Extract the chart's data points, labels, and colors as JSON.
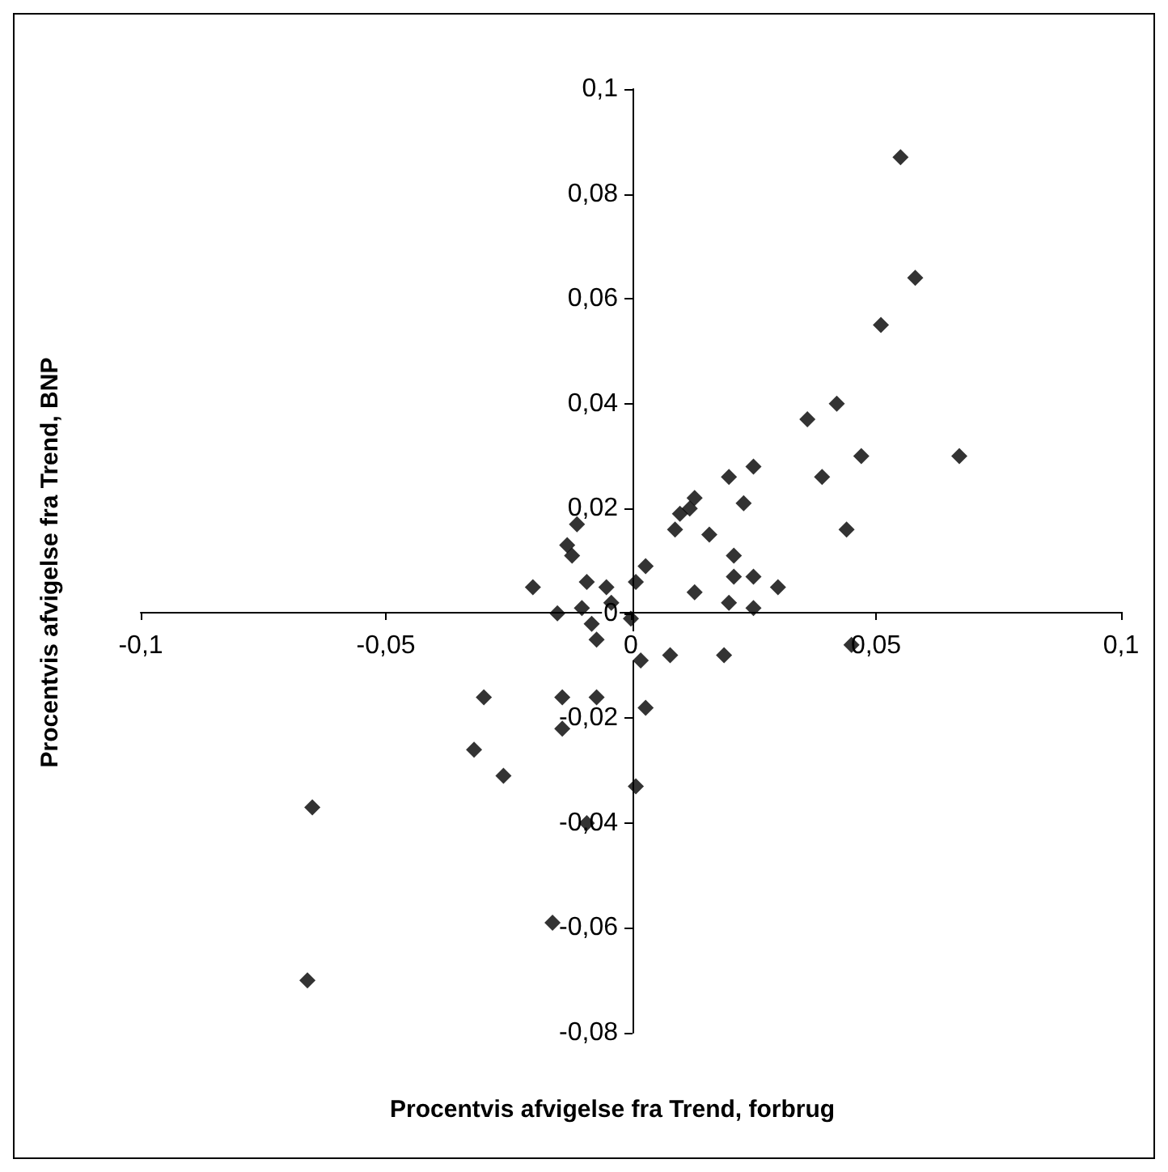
{
  "chart_data": {
    "type": "scatter",
    "xlabel": "Procentvis afvigelse fra Trend, forbrug",
    "ylabel": "Procentvis afvigelse fra Trend, BNP",
    "marker": "diamond",
    "xlim": [
      -0.1,
      0.1
    ],
    "xticks": [
      {
        "value": -0.1,
        "label": "-0,1"
      },
      {
        "value": -0.05,
        "label": "-0,05"
      },
      {
        "value": 0,
        "label": "0"
      },
      {
        "value": 0.05,
        "label": "0,05"
      },
      {
        "value": 0.1,
        "label": "0,1"
      }
    ],
    "ylim": [
      -0.08,
      0.1
    ],
    "yticks": [
      {
        "value": -0.08,
        "label": "-0,08"
      },
      {
        "value": -0.06,
        "label": "-0,06"
      },
      {
        "value": -0.04,
        "label": "-0,04"
      },
      {
        "value": -0.02,
        "label": "-0,02"
      },
      {
        "value": 0,
        "label": "0"
      },
      {
        "value": 0.02,
        "label": "0,02"
      },
      {
        "value": 0.04,
        "label": "0,04"
      },
      {
        "value": 0.06,
        "label": "0,06"
      },
      {
        "value": 0.08,
        "label": "0,08"
      },
      {
        "value": 0.1,
        "label": "0,1"
      }
    ],
    "series": [
      {
        "color": "#000000",
        "x": [
          0.055,
          0.058,
          0.051,
          0.042,
          0.036,
          0.047,
          0.067,
          0.039,
          0.044,
          0.045,
          0.025,
          0.02,
          0.013,
          0.01,
          0.012,
          0.023,
          0.009,
          0.016,
          -0.011,
          -0.013,
          -0.012,
          0.021,
          0.021,
          0.025,
          0.03,
          0.003,
          0.001,
          0.013,
          0.02,
          0.025,
          -0.02,
          -0.009,
          -0.005,
          -0.004,
          -0.01,
          -0.015,
          -0.008,
          -0.007,
          0.0,
          0.002,
          0.008,
          0.019,
          -0.065,
          -0.03,
          -0.032,
          -0.026,
          -0.014,
          -0.014,
          -0.007,
          0.003,
          0.001,
          -0.009,
          -0.016,
          -0.066
        ],
        "values": [
          0.087,
          0.064,
          0.055,
          0.04,
          0.037,
          0.03,
          0.03,
          0.026,
          0.016,
          -0.006,
          0.028,
          0.026,
          0.022,
          0.019,
          0.02,
          0.021,
          0.016,
          0.015,
          0.017,
          0.013,
          0.011,
          0.011,
          0.007,
          0.007,
          0.005,
          0.009,
          0.006,
          0.004,
          0.002,
          0.001,
          0.005,
          0.006,
          0.005,
          0.002,
          0.001,
          0.0,
          -0.002,
          -0.005,
          -0.001,
          -0.009,
          -0.008,
          -0.008,
          -0.037,
          -0.016,
          -0.026,
          -0.031,
          -0.016,
          -0.022,
          -0.016,
          -0.018,
          -0.033,
          -0.04,
          -0.059,
          -0.07
        ]
      }
    ]
  }
}
